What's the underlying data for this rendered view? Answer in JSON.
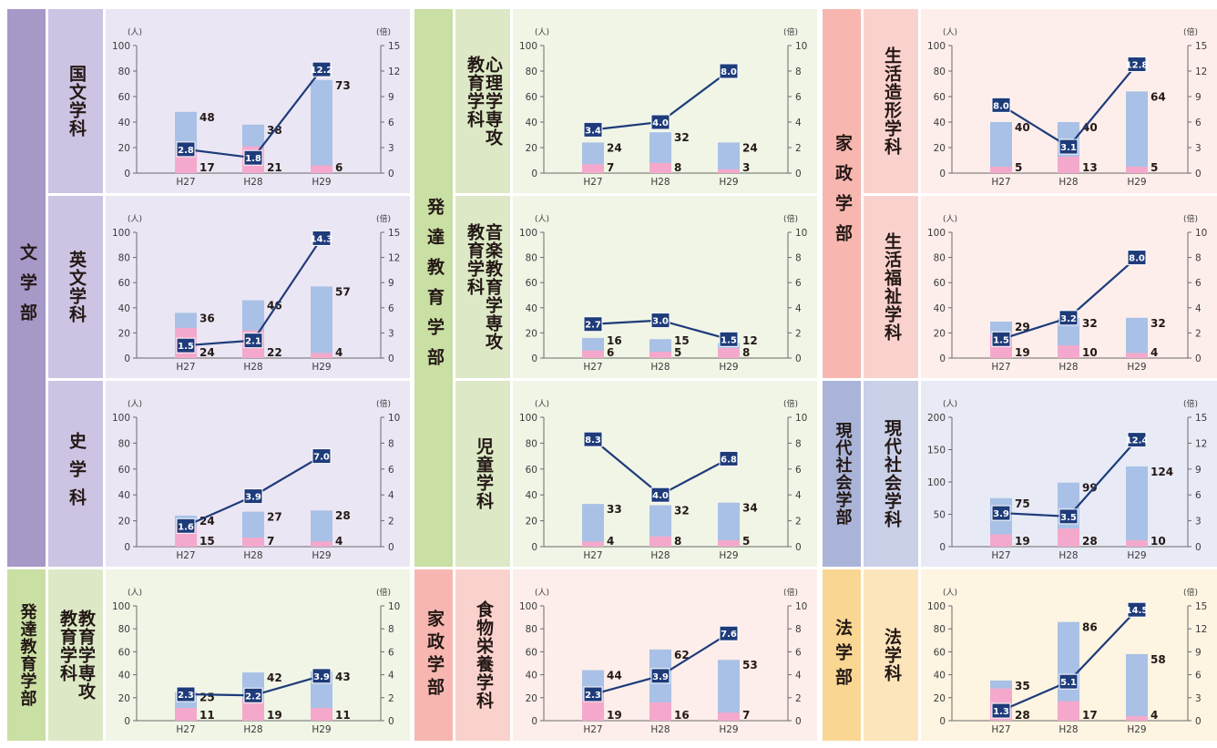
{
  "colors": {
    "bunFaculty": "#a698c7",
    "bunDept": "#cdc3e2",
    "bunPanel": "#ebe6f3",
    "hatFaculty": "#c9dfa3",
    "hatDept": "#dde9c6",
    "hatPanel": "#f0f5e6",
    "kasFaculty": "#f7b7b0",
    "kasDept": "#fad2cd",
    "kasPanel": "#fdeeeb",
    "genFaculty": "#aab4d8",
    "genDept": "#c9d0e8",
    "genPanel": "#e8ebf5",
    "houFaculty": "#fad693",
    "houDept": "#fce5bb",
    "houPanel": "#fdf4e2",
    "applicants": "#a9c1e6",
    "enrolled": "#f4a9cc",
    "ratioLine": "#1e3b7a",
    "ratioBox": "#1e3b7a"
  },
  "faculties": {
    "bungaku": "文学部",
    "hattatsu": "発達教育学部",
    "hattatsu_bottom": "発達教育学部",
    "kasei_top": "家政学部",
    "kasei_bottom": "家政学部",
    "gendai": "現代社会学部",
    "hougaku": "法学部"
  },
  "departments": {
    "kokubun": "国文学科",
    "eibun": "英文学科",
    "shigaku": "史学科",
    "shinri": "心理学専攻\n教育学科",
    "ongaku": "音楽教育学専攻\n教育学科",
    "jido": "児童学科",
    "kyoiku": "教育学専攻\n教育学科",
    "shokumotsu": "食物栄養学科",
    "zokei": "生活造形学科",
    "fukushi": "生活福祉学科",
    "gendaishakai": "現代社会学科",
    "hougakka": "法学科"
  },
  "axis_units": {
    "left": "(人)",
    "right": "(倍)"
  },
  "chart_data": [
    {
      "id": "kokubun",
      "type": "bar",
      "categories": [
        "H27",
        "H28",
        "H29"
      ],
      "series": [
        {
          "name": "",
          "values": [
            48,
            38,
            73
          ]
        },
        {
          "name": "",
          "values": [
            17,
            21,
            6
          ]
        },
        {
          "name": "",
          "values": [
            2.8,
            1.8,
            12.2
          ]
        }
      ],
      "ylim": [
        0,
        100
      ],
      "yticks": [
        "0",
        "20",
        "40",
        "60",
        "80",
        "100"
      ],
      "y2lim": [
        0,
        15
      ],
      "y2ticks": [
        "0",
        "3",
        "6",
        "9",
        "12",
        "15"
      ]
    },
    {
      "id": "eibun",
      "type": "bar",
      "categories": [
        "H27",
        "H28",
        "H29"
      ],
      "series": [
        {
          "name": "",
          "values": [
            36,
            46,
            57
          ]
        },
        {
          "name": "",
          "values": [
            24,
            22,
            4
          ]
        },
        {
          "name": "",
          "values": [
            1.5,
            2.1,
            14.3
          ]
        }
      ],
      "ylim": [
        0,
        100
      ],
      "yticks": [
        "0",
        "20",
        "40",
        "60",
        "80",
        "100"
      ],
      "y2lim": [
        0,
        15
      ],
      "y2ticks": [
        "0",
        "3",
        "6",
        "9",
        "12",
        "15"
      ]
    },
    {
      "id": "shigaku",
      "type": "bar",
      "categories": [
        "H27",
        "H28",
        "H29"
      ],
      "series": [
        {
          "name": "",
          "values": [
            24,
            27,
            28
          ]
        },
        {
          "name": "",
          "values": [
            15,
            7,
            4
          ]
        },
        {
          "name": "",
          "values": [
            1.6,
            3.9,
            7.0
          ]
        }
      ],
      "ylim": [
        0,
        100
      ],
      "yticks": [
        "0",
        "20",
        "40",
        "60",
        "80",
        "100"
      ],
      "y2lim": [
        0,
        10
      ],
      "y2ticks": [
        "0",
        "2",
        "4",
        "6",
        "8",
        "10"
      ]
    },
    {
      "id": "shinri",
      "type": "bar",
      "categories": [
        "H27",
        "H28",
        "H29"
      ],
      "series": [
        {
          "name": "",
          "values": [
            24,
            32,
            24
          ]
        },
        {
          "name": "",
          "values": [
            7,
            8,
            3
          ]
        },
        {
          "name": "",
          "values": [
            3.4,
            4.0,
            8.0
          ]
        }
      ],
      "ylim": [
        0,
        100
      ],
      "yticks": [
        "0",
        "20",
        "40",
        "60",
        "80",
        "100"
      ],
      "y2lim": [
        0,
        10
      ],
      "y2ticks": [
        "0",
        "2",
        "4",
        "6",
        "8",
        "10"
      ]
    },
    {
      "id": "ongaku",
      "type": "bar",
      "categories": [
        "H27",
        "H28",
        "H29"
      ],
      "series": [
        {
          "name": "",
          "values": [
            16,
            15,
            12
          ]
        },
        {
          "name": "",
          "values": [
            6,
            5,
            8
          ]
        },
        {
          "name": "",
          "values": [
            2.7,
            3.0,
            1.5
          ]
        }
      ],
      "ylim": [
        0,
        100
      ],
      "yticks": [
        "0",
        "20",
        "40",
        "60",
        "80",
        "100"
      ],
      "y2lim": [
        0,
        10
      ],
      "y2ticks": [
        "0",
        "2",
        "4",
        "6",
        "8",
        "10"
      ]
    },
    {
      "id": "jido",
      "type": "bar",
      "categories": [
        "H27",
        "H28",
        "H29"
      ],
      "series": [
        {
          "name": "",
          "values": [
            33,
            32,
            34
          ]
        },
        {
          "name": "",
          "values": [
            4,
            8,
            5
          ]
        },
        {
          "name": "",
          "values": [
            8.3,
            4.0,
            6.8
          ]
        }
      ],
      "ylim": [
        0,
        100
      ],
      "yticks": [
        "0",
        "20",
        "40",
        "60",
        "80",
        "100"
      ],
      "y2lim": [
        0,
        10
      ],
      "y2ticks": [
        "0",
        "2",
        "4",
        "6",
        "8",
        "10"
      ]
    },
    {
      "id": "kyoiku",
      "type": "bar",
      "categories": [
        "H27",
        "H28",
        "H29"
      ],
      "series": [
        {
          "name": "",
          "values": [
            25,
            42,
            43
          ]
        },
        {
          "name": "",
          "values": [
            11,
            19,
            11
          ]
        },
        {
          "name": "",
          "values": [
            2.3,
            2.2,
            3.9
          ]
        }
      ],
      "ylim": [
        0,
        100
      ],
      "yticks": [
        "0",
        "20",
        "40",
        "60",
        "80",
        "100"
      ],
      "y2lim": [
        0,
        10
      ],
      "y2ticks": [
        "0",
        "2",
        "4",
        "6",
        "8",
        "10"
      ]
    },
    {
      "id": "shokumotsu",
      "type": "bar",
      "categories": [
        "H27",
        "H28",
        "H29"
      ],
      "series": [
        {
          "name": "",
          "values": [
            44,
            62,
            53
          ]
        },
        {
          "name": "",
          "values": [
            19,
            16,
            7
          ]
        },
        {
          "name": "",
          "values": [
            2.3,
            3.9,
            7.6
          ]
        }
      ],
      "ylim": [
        0,
        100
      ],
      "yticks": [
        "0",
        "20",
        "40",
        "60",
        "80",
        "100"
      ],
      "y2lim": [
        0,
        10
      ],
      "y2ticks": [
        "0",
        "2",
        "4",
        "6",
        "8",
        "10"
      ]
    },
    {
      "id": "zokei",
      "type": "bar",
      "categories": [
        "H27",
        "H28",
        "H29"
      ],
      "series": [
        {
          "name": "",
          "values": [
            40,
            40,
            64
          ]
        },
        {
          "name": "",
          "values": [
            5,
            13,
            5
          ]
        },
        {
          "name": "",
          "values": [
            8.0,
            3.1,
            12.8
          ]
        }
      ],
      "ylim": [
        0,
        100
      ],
      "yticks": [
        "0",
        "20",
        "40",
        "60",
        "80",
        "100"
      ],
      "y2lim": [
        0,
        15
      ],
      "y2ticks": [
        "0",
        "3",
        "6",
        "9",
        "12",
        "15"
      ]
    },
    {
      "id": "fukushi",
      "type": "bar",
      "categories": [
        "H27",
        "H28",
        "H29"
      ],
      "series": [
        {
          "name": "",
          "values": [
            29,
            32,
            32
          ]
        },
        {
          "name": "",
          "values": [
            19,
            10,
            4
          ]
        },
        {
          "name": "",
          "values": [
            1.5,
            3.2,
            8.0
          ]
        }
      ],
      "ylim": [
        0,
        100
      ],
      "yticks": [
        "0",
        "20",
        "40",
        "60",
        "80",
        "100"
      ],
      "y2lim": [
        0,
        10
      ],
      "y2ticks": [
        "0",
        "2",
        "4",
        "6",
        "8",
        "10"
      ]
    },
    {
      "id": "gendaishakai",
      "type": "bar",
      "categories": [
        "H27",
        "H28",
        "H29"
      ],
      "series": [
        {
          "name": "",
          "values": [
            75,
            99,
            124
          ]
        },
        {
          "name": "",
          "values": [
            19,
            28,
            10
          ]
        },
        {
          "name": "",
          "values": [
            3.9,
            3.5,
            12.4
          ]
        }
      ],
      "ylim": [
        0,
        200
      ],
      "yticks": [
        "0",
        "50",
        "100",
        "150",
        "200"
      ],
      "y2lim": [
        0,
        15
      ],
      "y2ticks": [
        "0",
        "3",
        "6",
        "9",
        "12",
        "15"
      ]
    },
    {
      "id": "hougakka",
      "type": "bar",
      "categories": [
        "H27",
        "H28",
        "H29"
      ],
      "series": [
        {
          "name": "",
          "values": [
            35,
            86,
            58
          ]
        },
        {
          "name": "",
          "values": [
            28,
            17,
            4
          ]
        },
        {
          "name": "",
          "values": [
            1.3,
            5.1,
            14.5
          ]
        }
      ],
      "ylim": [
        0,
        100
      ],
      "yticks": [
        "0",
        "20",
        "40",
        "60",
        "80",
        "100"
      ],
      "y2lim": [
        0,
        15
      ],
      "y2ticks": [
        "0",
        "3",
        "6",
        "9",
        "12",
        "15"
      ]
    }
  ]
}
